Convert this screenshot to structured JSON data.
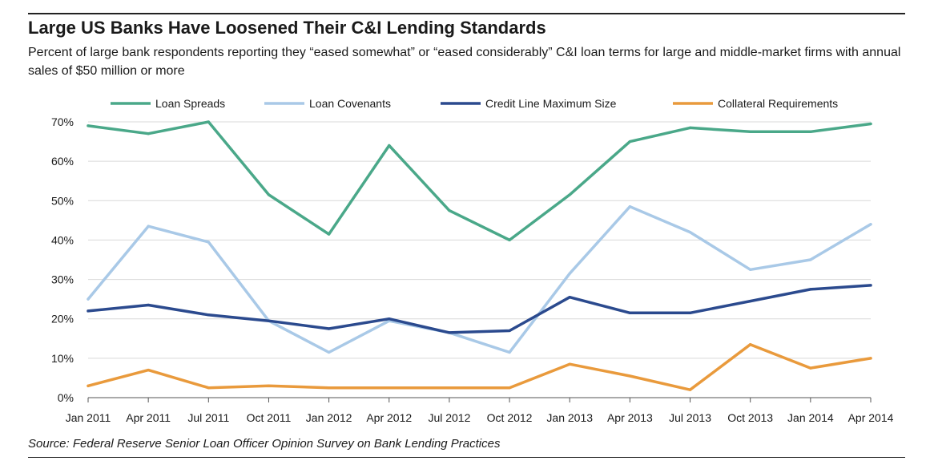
{
  "header": {
    "title": "Large US Banks Have Loosened Their C&I Lending Standards",
    "subtitle": "Percent of large bank respondents reporting they “eased somewhat” or “eased considerably” C&I loan terms for large and middle-market firms with annual sales of $50 million or more"
  },
  "footer": {
    "source": "Source: Federal Reserve Senior Loan Officer Opinion Survey on Bank Lending Practices"
  },
  "chart_data": {
    "type": "line",
    "x": [
      "Jan 2011",
      "Apr 2011",
      "Jul 2011",
      "Oct 2011",
      "Jan 2012",
      "Apr 2012",
      "Jul 2012",
      "Oct 2012",
      "Jan 2013",
      "Apr 2013",
      "Jul 2013",
      "Oct 2013",
      "Jan 2014",
      "Apr 2014"
    ],
    "y_ticks": [
      "0%",
      "10%",
      "20%",
      "30%",
      "40%",
      "50%",
      "60%",
      "70%"
    ],
    "ylim": [
      0,
      70
    ],
    "grid": true,
    "legend_position": "top",
    "series": [
      {
        "name": "Loan Spreads",
        "color": "#4aa889",
        "values": [
          69,
          67,
          70,
          51.5,
          41.5,
          64,
          47.5,
          40,
          51.5,
          65,
          68.5,
          67.5,
          67.5,
          69.5
        ]
      },
      {
        "name": "Loan Covenants",
        "color": "#a9c9e7",
        "values": [
          25,
          43.5,
          39.5,
          19.5,
          11.5,
          19.5,
          16.5,
          11.5,
          31.5,
          48.5,
          42,
          32.5,
          35,
          44
        ]
      },
      {
        "name": "Credit Line Maximum  Size",
        "color": "#2b4a8e",
        "values": [
          22,
          23.5,
          21,
          19.5,
          17.5,
          20,
          16.5,
          17,
          25.5,
          21.5,
          21.5,
          24.5,
          27.5,
          28.5
        ]
      },
      {
        "name": "Collateral Requirements",
        "color": "#e99a3c",
        "values": [
          3,
          7,
          2.5,
          3,
          2.5,
          2.5,
          2.5,
          2.5,
          8.5,
          5.5,
          2,
          13.5,
          7.5,
          10
        ]
      }
    ]
  }
}
